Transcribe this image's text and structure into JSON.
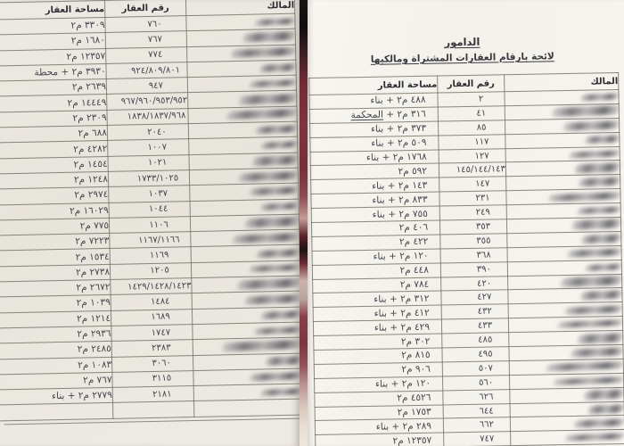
{
  "colors": {
    "binding": "#7d3440",
    "left_paper": "#e9e6df",
    "right_paper": "#f6f4ee",
    "ink": "#45454e"
  },
  "left_page": {
    "table": {
      "headers": {
        "owner": "المالك",
        "number": "رقم العقار",
        "area": "مساحة العقار"
      },
      "rows": [
        {
          "no": "٧٦٠",
          "area": "٣٣٠٩ م٢"
        },
        {
          "no": "٧٦٧",
          "area": "١٦٨٠ م٢"
        },
        {
          "no": "٧٧٤",
          "area": "١٢٣٥٧ م٢"
        },
        {
          "no": "٩٢٤/٨٠٩/٨٠١",
          "area": "٣٩٣٠ م٢ + محطة"
        },
        {
          "no": "٩٤٧",
          "area": "٢٦٣٩ م٢"
        },
        {
          "no": "٩٦٧/٩٦٠/٩٥٣/٩٥٢",
          "area": "١٤٤٤٩ م٢"
        },
        {
          "no": "١٨٣٨/١٨٣٧/٩٦٨",
          "area": "٢٣٠٩ م٢"
        },
        {
          "no": "٢٠٤٠",
          "area": "٦٨٨ م٢"
        },
        {
          "no": "١٠٠٧",
          "area": "٤٢٨٢ م٢"
        },
        {
          "no": "١٠٢١",
          "area": "١٤٥٤ م٢"
        },
        {
          "no": "١٧٣٣/١٠٢٥",
          "area": "١٢٤٨ م٢"
        },
        {
          "no": "١٠٣٧",
          "area": "٢٩٧٤ م٢"
        },
        {
          "no": "١٠٤٤",
          "area": "١٦٠٢٩ م٢"
        },
        {
          "no": "١١٠٦",
          "area": "٧٧٥ م٢"
        },
        {
          "no": "١١٦٧/١١٦٦",
          "area": "٧٢٢٣ م٢"
        },
        {
          "no": "١١٦٩",
          "area": "١٥٣٤ م٢"
        },
        {
          "no": "١٢٠٥",
          "area": "٢٧٣٨ م٢"
        },
        {
          "no": "١٤٢٩/١٤٢٨/١٤٢٣",
          "area": "٢٦٧٢ م٢"
        },
        {
          "no": "١٤٨٤",
          "area": "١٠٣٩ م٢"
        },
        {
          "no": "١٦٨٩",
          "area": "١٢١٤ م٢"
        },
        {
          "no": "١٧٤٧",
          "area": "٢٩٣٦ م٢"
        },
        {
          "no": "٢٣٨٣",
          "area": "٢٤٨٥ م٢"
        },
        {
          "no": "٣٠٦٠",
          "area": "١٠٨٣ م٢"
        },
        {
          "no": "٣١١٥",
          "area": "٧٦٧ م٢"
        },
        {
          "no": "٢١٨١",
          "area": "٢٧٧٩ م٢ + بناء"
        },
        {
          "no": "",
          "area": ""
        }
      ]
    }
  },
  "right_page": {
    "title": "الدامور",
    "subtitle": "لائحة بارقام العقارات المشتراة ومالكيها",
    "table": {
      "headers": {
        "owner": "المالك",
        "number": "رقم العقار",
        "area": "مساحة العقار"
      },
      "rows": [
        {
          "no": "٢",
          "area": "٤٨٨ م٢ + بناء"
        },
        {
          "no": "٤١",
          "area": "٣١٦ م٢ + المحكمة",
          "u": true
        },
        {
          "no": "٨٥",
          "area": "٣٧٣ م٢ + بناء"
        },
        {
          "no": "١١٧",
          "area": "٥٠٩ م٢ + بناء"
        },
        {
          "no": "١٢٧",
          "area": "١٧٦٨ م٢ + بناء"
        },
        {
          "no": "١٤٥/١٤٤/١٤٣",
          "area": "٥٩٢ م٢"
        },
        {
          "no": "١٤٧",
          "area": "١٤٣ م٢ + بناء"
        },
        {
          "no": "٢٣١",
          "area": "٨٣٣ م٢ + بناء"
        },
        {
          "no": "٢٤٩",
          "area": "٧٥٥ م٢ + بناء"
        },
        {
          "no": "٣٥٣",
          "area": "٤٠٦ م٢"
        },
        {
          "no": "٣٥٥",
          "area": "٤٢٢ م٢"
        },
        {
          "no": "٣٦٨",
          "area": "١٢٠ م٢ + بناء"
        },
        {
          "no": "٣٩٠",
          "area": "٤٤٨ م٢"
        },
        {
          "no": "٤٢٠",
          "area": "٧٨٤ م٢"
        },
        {
          "no": "٤٢٧",
          "area": "٣١٢ م٢ + بناء"
        },
        {
          "no": "٤٣٢",
          "area": "٤١٢ م٢ + بناء"
        },
        {
          "no": "٤٣٣",
          "area": "٤٢٩ م٢ + بناء"
        },
        {
          "no": "٤٨٥",
          "area": "٣٠٢ م٢"
        },
        {
          "no": "٤٩٥",
          "area": "٨١٥ م٢"
        },
        {
          "no": "٥٠٧",
          "area": "٩٠٦ م٢"
        },
        {
          "no": "٥٦٠",
          "area": "١٢٠ م٢ + بناء"
        },
        {
          "no": "٦٢٦",
          "area": "٤٥٢٦ م٢"
        },
        {
          "no": "٦٤٤",
          "area": "١٧٥٣ م٢"
        },
        {
          "no": "٦٦٢",
          "area": "٢٨٩ م٢ + بناء"
        },
        {
          "no": "٧٤٧",
          "area": "١٢٣٥٧ م٢"
        }
      ]
    }
  }
}
